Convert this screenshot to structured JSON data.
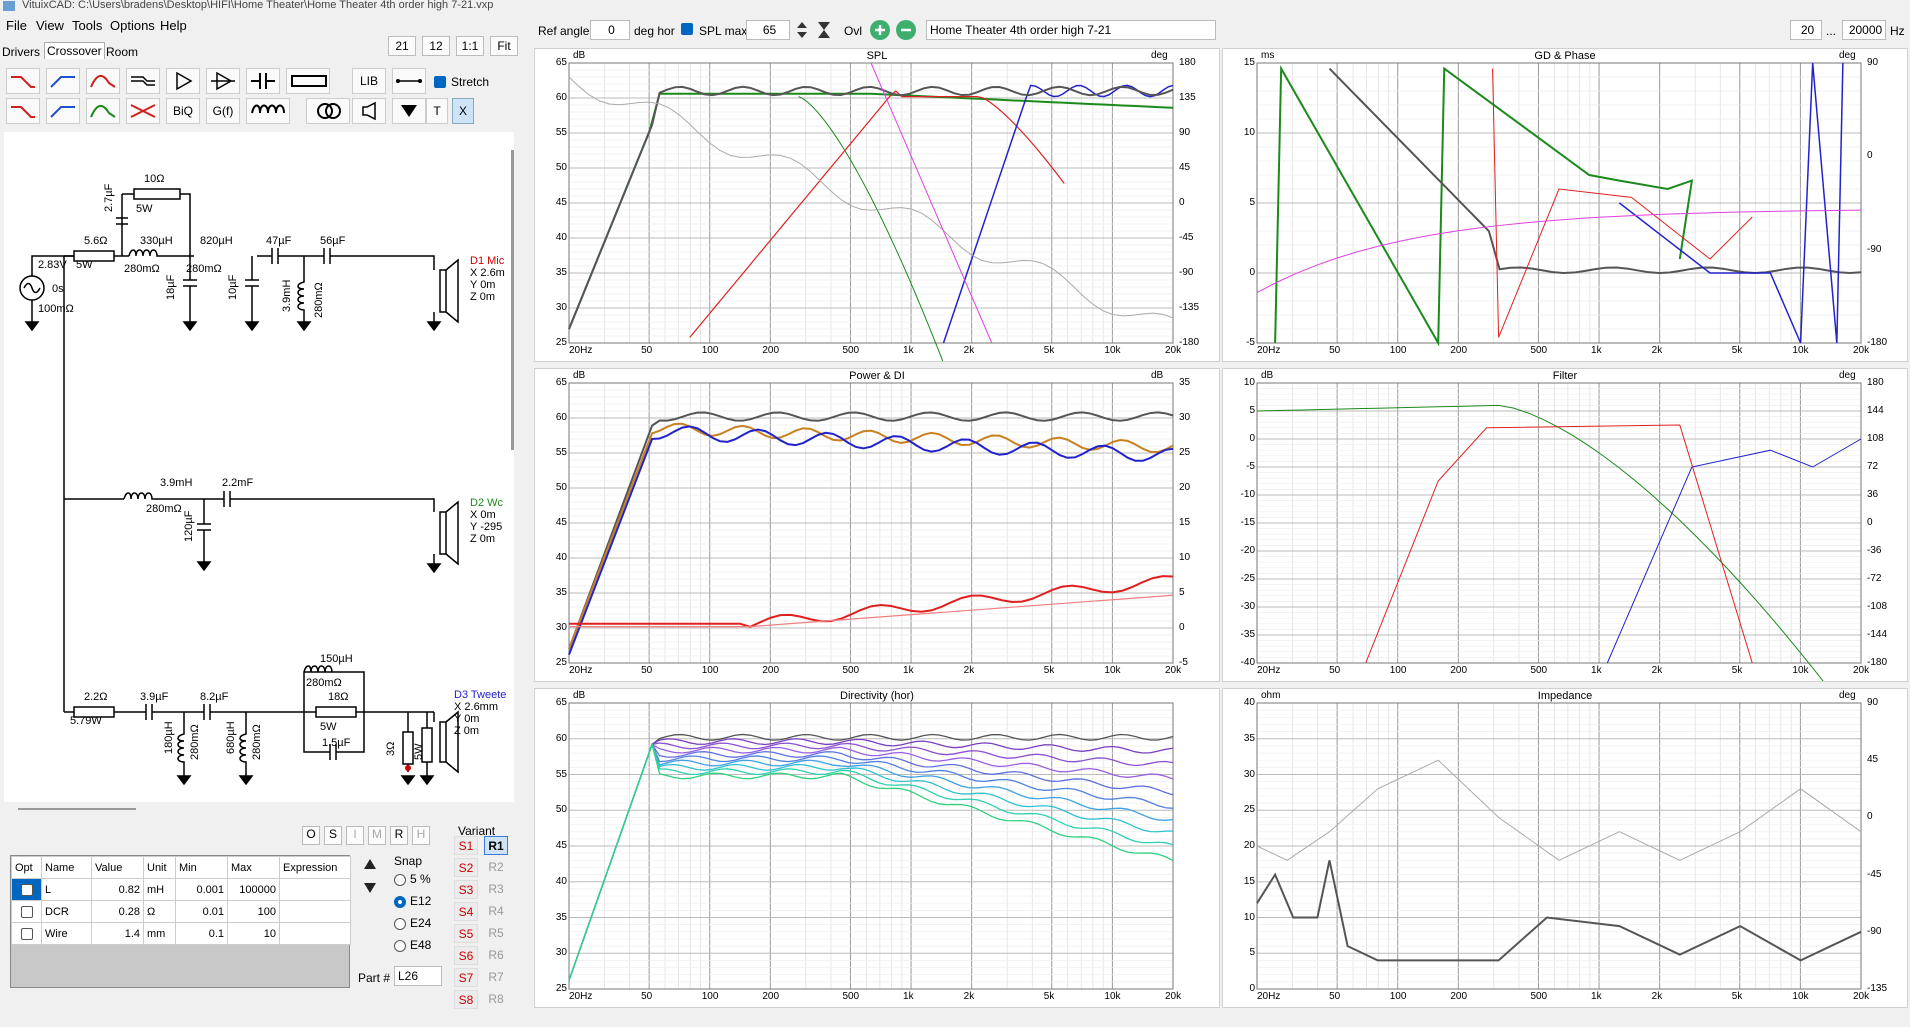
{
  "app": {
    "title": "VituixCAD: C:\\Users\\bradens\\Desktop\\HIFI\\Home Theater\\Home Theater 4th order high 7-21.vxp"
  },
  "menu": [
    "File",
    "View",
    "Tools",
    "Options",
    "Help"
  ],
  "tabs": [
    "Drivers",
    "Crossover",
    "Room"
  ],
  "zoom_buttons": [
    "21",
    "12",
    "1:1",
    "Fit"
  ],
  "toolbar": {
    "lib": "LIB",
    "stretch": "Stretch",
    "biq": "BiQ",
    "gf": "G(f)",
    "t": "T",
    "x": "X"
  },
  "topbar": {
    "ref_angle_label": "Ref angle",
    "ref_angle_value": "0",
    "deg_hor_label": "deg hor",
    "spl_max_label": "SPL max",
    "spl_max_value": "65",
    "ovl_label": "Ovl",
    "project_name": "Home Theater 4th order high 7-21",
    "freq_min": "20",
    "freq_sep": "...",
    "freq_max": "20000",
    "freq_unit": "Hz"
  },
  "schematic": {
    "labels": {
      "r10": "10Ω",
      "w5a": "5W",
      "r56": "5.6Ω",
      "c27": "2.7µF",
      "l330": "330µH",
      "l330r": "280mΩ",
      "l820": "820µH",
      "l820r": "280mΩ",
      "c47": "47µF",
      "c56": "56µF",
      "w5b": "5W",
      "c18": "18µF",
      "c10": "10µF",
      "l39": "3.9mH",
      "l39r": "280mΩ",
      "src_v": "2.83V",
      "src_p": "0s",
      "src_r": "100mΩ",
      "d1": "D1 Mic",
      "d1x": "X 2.6m",
      "d1y": "Y 0m",
      "d1z": "Z 0m",
      "wl39": "3.9mH",
      "wl39r": "280mΩ",
      "wc22": "2.2mF",
      "wc120": "120µF",
      "d2": "D2 Wc",
      "d2x": "X 0m",
      "d2y": "Y -295",
      "d2z": "Z 0m",
      "tr22": "2.2Ω",
      "tr22w": "5.79W",
      "tc39": "3.9µF",
      "tc82": "8.2µF",
      "tl180": "180µH",
      "tl180r": "280mΩ",
      "tl680": "680µH",
      "tl680r": "280mΩ",
      "tl150": "150µH",
      "tl150r": "280mΩ",
      "tr18": "18Ω",
      "tr18w": "5W",
      "tc15": "1.5µF",
      "tr3": "3Ω",
      "tr5w": "5W",
      "d3": "D3 Tweete",
      "d3x": "X 2.6mm",
      "d3y": "Y 0m",
      "d3z": "Z 0m"
    }
  },
  "props": {
    "headers": [
      "Opt",
      "Name",
      "Value",
      "Unit",
      "Min",
      "Max",
      "Expression"
    ],
    "rows": [
      {
        "name": "L",
        "value": "0.82",
        "unit": "mH",
        "min": "0.001",
        "max": "100000"
      },
      {
        "name": "DCR",
        "value": "0.28",
        "unit": "Ω",
        "min": "0.01",
        "max": "100"
      },
      {
        "name": "Wire",
        "value": "1.4",
        "unit": "mm",
        "min": "0.1",
        "max": "10"
      }
    ]
  },
  "osimrh": [
    "O",
    "S",
    "I",
    "M",
    "R",
    "H"
  ],
  "snap": {
    "label": "Snap",
    "options": [
      "5 %",
      "E12",
      "E24",
      "E48"
    ],
    "selected": "E12"
  },
  "part": {
    "label": "Part #",
    "value": "L26"
  },
  "variant": {
    "label": "Variant",
    "s": [
      "S1",
      "S2",
      "S3",
      "S4",
      "S5",
      "S6",
      "S7",
      "S8"
    ],
    "r": [
      "R1",
      "R2",
      "R3",
      "R4",
      "R5",
      "R6",
      "R7",
      "R8"
    ],
    "selected": "R1"
  },
  "graphs": {
    "spl": {
      "title": "SPL",
      "lunit": "dB",
      "runit": "deg",
      "yl": [
        "65",
        "60",
        "55",
        "50",
        "45",
        "40",
        "35",
        "30",
        "25"
      ],
      "yr": [
        "180",
        "135",
        "90",
        "45",
        "0",
        "-45",
        "-90",
        "-135",
        "-180"
      ],
      "x": [
        "20Hz",
        "50",
        "100",
        "200",
        "500",
        "1k",
        "2k",
        "5k",
        "10k",
        "20k"
      ]
    },
    "gd": {
      "title": "GD & Phase",
      "lunit": "ms",
      "runit": "deg",
      "yl": [
        "15",
        "10",
        "5",
        "0",
        "-5"
      ],
      "yr": [
        "90",
        "0",
        "-90",
        "-180"
      ],
      "x": [
        "20Hz",
        "50",
        "100",
        "200",
        "500",
        "1k",
        "2k",
        "5k",
        "10k",
        "20k"
      ]
    },
    "power": {
      "title": "Power & DI",
      "lunit": "dB",
      "runit": "dB",
      "yl": [
        "65",
        "60",
        "55",
        "50",
        "45",
        "40",
        "35",
        "30",
        "25"
      ],
      "yr": [
        "35",
        "30",
        "25",
        "20",
        "15",
        "10",
        "5",
        "0",
        "-5"
      ],
      "x": [
        "20Hz",
        "50",
        "100",
        "200",
        "500",
        "1k",
        "2k",
        "5k",
        "10k",
        "20k"
      ]
    },
    "filter": {
      "title": "Filter",
      "lunit": "dB",
      "runit": "deg",
      "yl": [
        "10",
        "5",
        "0",
        "-5",
        "-10",
        "-15",
        "-20",
        "-25",
        "-30",
        "-35",
        "-40"
      ],
      "yr": [
        "180",
        "144",
        "108",
        "72",
        "36",
        "0",
        "-36",
        "-72",
        "-108",
        "-144",
        "-180"
      ],
      "x": [
        "20Hz",
        "50",
        "100",
        "200",
        "500",
        "1k",
        "2k",
        "5k",
        "10k",
        "20k"
      ]
    },
    "dir": {
      "title": "Directivity (hor)",
      "lunit": "dB",
      "yl": [
        "65",
        "60",
        "55",
        "50",
        "45",
        "40",
        "35",
        "30",
        "25"
      ],
      "x": [
        "20Hz",
        "50",
        "100",
        "200",
        "500",
        "1k",
        "2k",
        "5k",
        "10k",
        "20k"
      ]
    },
    "imp": {
      "title": "Impedance",
      "lunit": "ohm",
      "runit": "deg",
      "yl": [
        "40",
        "35",
        "30",
        "25",
        "20",
        "15",
        "10",
        "5",
        "0"
      ],
      "yr": [
        "90",
        "45",
        "0",
        "-45",
        "-90",
        "-135"
      ],
      "x": [
        "20Hz",
        "50",
        "100",
        "200",
        "500",
        "1k",
        "2k",
        "5k",
        "10k",
        "20k"
      ]
    }
  },
  "colors": {
    "total": "#555555",
    "woofer": "#1a8a1a",
    "mid": "#e02020",
    "tweeter": "#2222cc",
    "magenta": "#e040e0",
    "gray": "#aaaaaa",
    "olive": "#9ab020",
    "orange": "#c88020",
    "cyan": "#30c0d0"
  }
}
